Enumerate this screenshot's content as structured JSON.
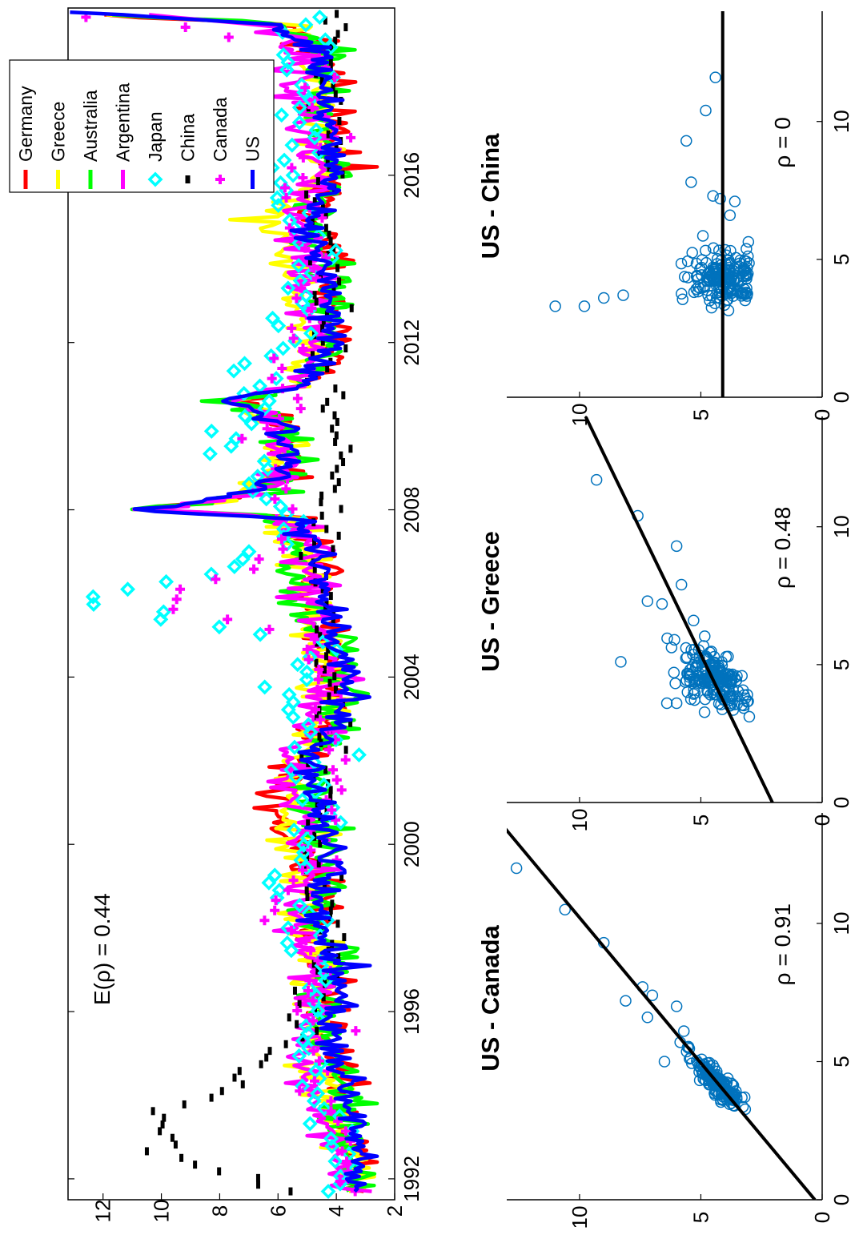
{
  "colors": {
    "Germany": "#ff0000",
    "Greece": "#ffff00",
    "Australia": "#00ff00",
    "Argentina": "#ff00ff",
    "Japan": "#00ffff",
    "China": "#000000",
    "Canada": "#ff00ff",
    "US": "#0000ff",
    "scatter": "#0072bd",
    "fit": "#000000"
  },
  "chart_data": [
    {
      "id": "timeseries",
      "type": "line",
      "orientation": "rotated-90-ccw",
      "annotation": "E(ρ) = 0.44",
      "x_ticks": [
        "1992",
        "1996",
        "2000",
        "2004",
        "2008",
        "2012",
        "2016"
      ],
      "y_ticks": [
        "2",
        "4",
        "6",
        "8",
        "10",
        "12"
      ],
      "xlim": [
        1991.5,
        2020.0
      ],
      "ylim": [
        2,
        13.2
      ],
      "legend_position": "top-right",
      "legend": [
        "Germany",
        "Greece",
        "Australia",
        "Argentina",
        "Japan",
        "China",
        "Canada",
        "US"
      ],
      "us_series": {
        "name": "US",
        "x": [
          1991.7,
          1993.0,
          1994.5,
          1995.9,
          1997.0,
          1998.0,
          1999.0,
          2000.0,
          2001.0,
          2002.0,
          2003.0,
          2004.0,
          2005.0,
          2006.0,
          2007.0,
          2007.8,
          2008.0,
          2008.3,
          2008.8,
          2009.5,
          2010.1,
          2010.6,
          2011.0,
          2012.0,
          2013.0,
          2014.0,
          2015.0,
          2016.0,
          2017.0,
          2018.0,
          2019.0,
          2019.6,
          2019.9
        ],
        "values": [
          3.2,
          3.3,
          3.9,
          4.2,
          3.9,
          4.6,
          4.4,
          4.3,
          4.5,
          5.0,
          4.0,
          3.5,
          4.1,
          4.5,
          4.4,
          5.5,
          11.2,
          7.5,
          5.8,
          5.6,
          6.0,
          7.6,
          5.0,
          4.2,
          4.1,
          4.5,
          4.9,
          4.0,
          4.2,
          4.6,
          4.4,
          6.0,
          12.8
        ]
      },
      "other_series": [
        {
          "name": "Germany",
          "values": [
            3.2,
            3.6,
            4.1,
            4.3,
            4.2,
            4.8,
            4.6,
            5.2,
            6.2,
            5.0,
            4.2,
            3.8,
            4.3,
            4.7,
            4.6,
            5.4,
            10.8,
            7.2,
            5.8,
            5.5,
            5.8,
            7.4,
            4.8,
            4.0,
            4.2,
            4.4,
            4.7,
            4.0,
            4.2,
            4.4,
            4.3,
            5.8,
            12.8
          ]
        },
        {
          "name": "Greece",
          "values": [
            3.4,
            3.8,
            4.5,
            4.7,
            4.6,
            5.3,
            5.1,
            5.3,
            5.6,
            5.4,
            4.6,
            4.3,
            4.7,
            5.0,
            5.0,
            5.8,
            10.5,
            7.4,
            6.0,
            5.8,
            6.2,
            7.2,
            5.4,
            5.0,
            5.4,
            5.8,
            6.2,
            4.6,
            4.4,
            4.6,
            4.5,
            5.6,
            12.8
          ]
        },
        {
          "name": "Australia",
          "values": [
            3.3,
            3.5,
            4.0,
            4.3,
            4.1,
            4.7,
            4.4,
            4.6,
            4.8,
            4.9,
            4.0,
            3.6,
            4.3,
            5.6,
            5.2,
            5.8,
            10.6,
            7.3,
            5.9,
            5.5,
            5.7,
            7.2,
            4.9,
            4.2,
            4.2,
            4.4,
            4.7,
            4.0,
            4.2,
            4.5,
            4.3,
            5.6,
            12.8
          ]
        },
        {
          "name": "Argentina",
          "values": [
            3.6,
            4.2,
            5.1,
            5.0,
            4.6,
            5.5,
            5.2,
            5.0,
            5.4,
            5.6,
            4.7,
            4.0,
            4.7,
            5.0,
            4.9,
            5.8,
            10.9,
            7.3,
            5.9,
            5.7,
            6.0,
            7.3,
            5.3,
            4.6,
            4.7,
            4.9,
            5.2,
            4.5,
            4.8,
            5.5,
            5.2,
            6.3,
            11.5
          ]
        }
      ],
      "markers": [
        {
          "name": "Japan",
          "values": [
            3.5,
            4.0,
            4.5,
            4.7,
            5.2,
            4.8,
            5.0,
            5.0,
            6.0,
            5.2,
            4.6,
            4.5,
            4.8,
            5.5,
            5.0,
            12.8,
            6.8,
            5.6,
            6.5,
            8.1,
            6.5,
            7.4,
            5.5,
            4.8,
            5.0,
            5.5,
            5.8,
            5.0,
            5.2,
            4.7,
            4.8
          ]
        },
        {
          "name": "China",
          "values": [
            6.0,
            10.0,
            9.8,
            7.0,
            4.9,
            5.0,
            4.2,
            4.4,
            4.6,
            4.8,
            4.3,
            4.5,
            4.2,
            4.1,
            4.6,
            4.2,
            4.5,
            4.3,
            4.1,
            4.0,
            4.2,
            4.6,
            4.3,
            4.1,
            4.3,
            4.5,
            4.2,
            4.1,
            4.2,
            4.0,
            4.3
          ]
        },
        {
          "name": "Canada",
          "values": [
            3.4,
            3.7,
            4.1,
            4.3,
            4.5,
            4.9,
            4.6,
            6.0,
            5.2,
            4.6,
            4.1,
            4.0,
            4.5,
            4.8,
            4.6,
            11.0,
            6.8,
            5.3,
            5.6,
            6.5,
            5.4,
            6.0,
            4.8,
            4.7,
            4.8,
            5.0,
            5.2,
            4.4,
            4.6,
            4.8,
            13.0
          ]
        }
      ]
    },
    {
      "id": "us-canada",
      "type": "scatter",
      "title": "US - Canada",
      "annotation": "ρ = 0.91",
      "xlim": [
        0,
        14
      ],
      "ylim": [
        0,
        13
      ],
      "x_ticks": [
        "0",
        "5",
        "10"
      ],
      "y_ticks": [
        "0",
        "5",
        "10"
      ],
      "fit": {
        "slope": 0.95,
        "intercept": 0.3
      },
      "outliers": [
        [
          12.0,
          12.6
        ],
        [
          10.5,
          10.6
        ],
        [
          9.3,
          9.0
        ],
        [
          7.7,
          7.4
        ],
        [
          7.4,
          7.0
        ],
        [
          7.2,
          8.1
        ],
        [
          7.0,
          6.0
        ],
        [
          6.6,
          7.2
        ],
        [
          5.0,
          6.5
        ],
        [
          6.1,
          5.7
        ]
      ],
      "cluster": {
        "cx": 4.1,
        "cy": 4.2,
        "sx": 0.5,
        "sy": 0.5,
        "rho": 0.9,
        "n": 190
      }
    },
    {
      "id": "us-greece",
      "type": "scatter",
      "title": "US - Greece",
      "annotation": "ρ = 0.48",
      "xlim": [
        0,
        14
      ],
      "ylim": [
        0,
        13
      ],
      "x_ticks": [
        "0",
        "5",
        "10"
      ],
      "y_ticks": [
        "0",
        "5",
        "10"
      ],
      "fit": {
        "slope": 0.55,
        "intercept": 2.05
      },
      "outliers": [
        [
          11.7,
          9.3
        ],
        [
          10.4,
          7.6
        ],
        [
          9.3,
          6.0
        ],
        [
          7.9,
          5.8
        ],
        [
          5.1,
          8.3
        ],
        [
          7.2,
          6.6
        ],
        [
          7.3,
          7.2
        ],
        [
          3.6,
          6.4
        ],
        [
          3.6,
          6.0
        ],
        [
          6.6,
          5.3
        ]
      ],
      "cluster": {
        "cx": 4.3,
        "cy": 4.3,
        "sx": 0.6,
        "sy": 0.7,
        "rho": 0.4,
        "n": 200
      }
    },
    {
      "id": "us-china",
      "type": "scatter",
      "title": "US - China",
      "annotation": "ρ = 0",
      "xlim": [
        0,
        14
      ],
      "ylim": [
        0,
        13
      ],
      "x_ticks": [
        "0",
        "5",
        "10"
      ],
      "y_ticks": [
        "0",
        "5",
        "10"
      ],
      "fit": {
        "slope": 0.0,
        "intercept": 4.1
      },
      "outliers": [
        [
          3.3,
          11.0
        ],
        [
          3.3,
          9.8
        ],
        [
          3.6,
          9.0
        ],
        [
          3.7,
          8.2
        ],
        [
          11.6,
          4.4
        ],
        [
          10.4,
          4.8
        ],
        [
          9.3,
          5.6
        ],
        [
          7.8,
          5.4
        ],
        [
          7.3,
          4.5
        ],
        [
          7.2,
          4.2
        ],
        [
          6.6,
          3.8
        ],
        [
          7.1,
          3.6
        ]
      ],
      "cluster": {
        "cx": 4.2,
        "cy": 4.1,
        "sx": 0.6,
        "sy": 0.6,
        "rho": 0.0,
        "n": 200
      }
    }
  ]
}
